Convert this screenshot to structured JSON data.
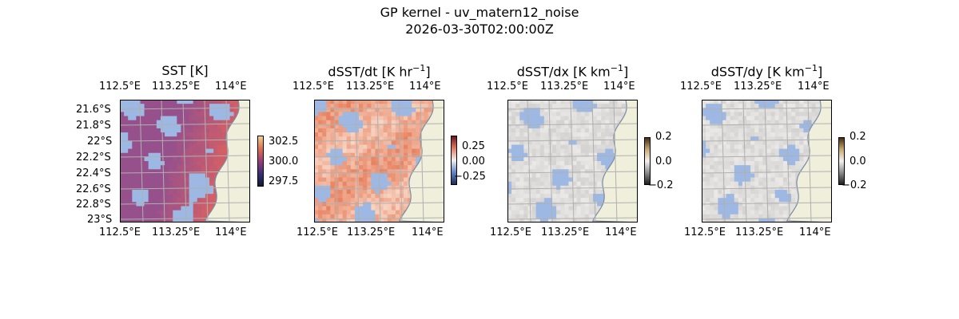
{
  "figure": {
    "title_line1": "GP kernel - uv_matern12_noise",
    "title_line2": "2026-03-30T02:00:00Z"
  },
  "colors": {
    "land": "#efefdb",
    "nan_fill": "#9db8e2",
    "grid": "#b0b0b0",
    "coast": "#7a8ba3"
  },
  "chart_data": [
    {
      "type": "heatmap",
      "title_main": "SST [K]",
      "title_sup": "",
      "xticks": [
        "112.5°E",
        "113.25°E",
        "114°E"
      ],
      "yticks": [
        "21.6°S",
        "21.8°S",
        "22°S",
        "22.2°S",
        "22.4°S",
        "22.6°S",
        "22.8°S",
        "23°S"
      ],
      "colorbar": {
        "ticks": [
          "302.5",
          "300.0",
          "297.5"
        ],
        "cmap": "thermal"
      },
      "field": "warm"
    },
    {
      "type": "heatmap",
      "title_main": "dSST/dt [K hr",
      "title_sup": "−1",
      "title_end": "]",
      "xticks": [
        "112.5°E",
        "113.25°E",
        "114°E"
      ],
      "colorbar": {
        "ticks": [
          "0.25",
          "0.00",
          "−0.25"
        ],
        "cmap": "balance"
      },
      "field": "tendency"
    },
    {
      "type": "heatmap",
      "title_main": "dSST/dx [K km",
      "title_sup": "−1",
      "title_end": "]",
      "xticks": [
        "112.5°E",
        "113.25°E",
        "114°E"
      ],
      "colorbar": {
        "ticks": [
          "0.2",
          "0.0",
          "−0.2"
        ],
        "cmap": "diff"
      },
      "field": "gradient"
    },
    {
      "type": "heatmap",
      "title_main": "dSST/dy [K km",
      "title_sup": "−1",
      "title_end": "]",
      "xticks": [
        "112.5°E",
        "113.25°E",
        "114°E"
      ],
      "colorbar": {
        "ticks": [
          "0.2",
          "0.0",
          "−0.2"
        ],
        "cmap": "diff"
      },
      "field": "gradient"
    }
  ]
}
